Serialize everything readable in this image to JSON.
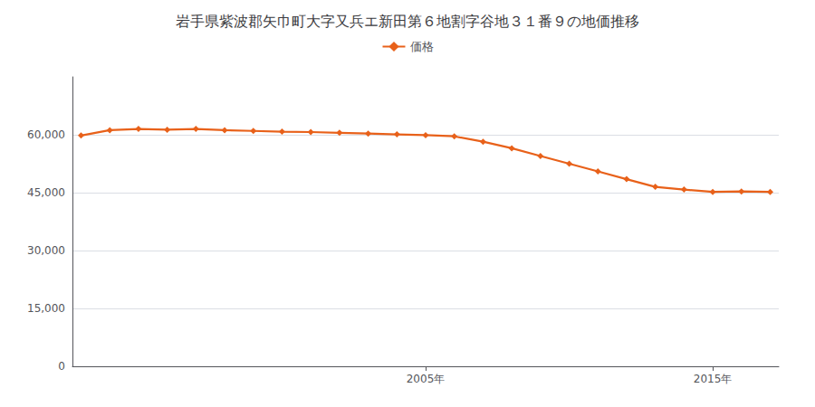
{
  "chart_data": {
    "type": "line",
    "title": "岩手県紫波郡矢巾町大字又兵エ新田第６地割字谷地３１番９の地価推移",
    "x": [
      1993,
      1994,
      1995,
      1996,
      1997,
      1998,
      1999,
      2000,
      2001,
      2002,
      2003,
      2004,
      2005,
      2006,
      2007,
      2008,
      2009,
      2010,
      2011,
      2012,
      2013,
      2014,
      2015,
      2016,
      2017
    ],
    "series": [
      {
        "name": "価格",
        "color": "#e8611a",
        "marker": "diamond",
        "values": [
          59800,
          61200,
          61500,
          61300,
          61500,
          61200,
          61000,
          60800,
          60700,
          60500,
          60300,
          60100,
          59900,
          59600,
          58200,
          56500,
          54500,
          52500,
          50500,
          48500,
          46500,
          45800,
          45200,
          45300,
          45200
        ]
      }
    ],
    "xlim": [
      1992.7,
      2017.3
    ],
    "xticks": [
      {
        "value": 2005,
        "label": "2005年"
      },
      {
        "value": 2015,
        "label": "2015年"
      }
    ],
    "ylim": [
      0,
      75000
    ],
    "yticks": [
      0,
      {
        "value": 15000,
        "label": "15,000"
      },
      {
        "value": 30000,
        "label": "30,000"
      },
      {
        "value": 45000,
        "label": "45,000"
      },
      {
        "value": 60000,
        "label": "60,000"
      }
    ],
    "grid": true,
    "legend": "top"
  }
}
